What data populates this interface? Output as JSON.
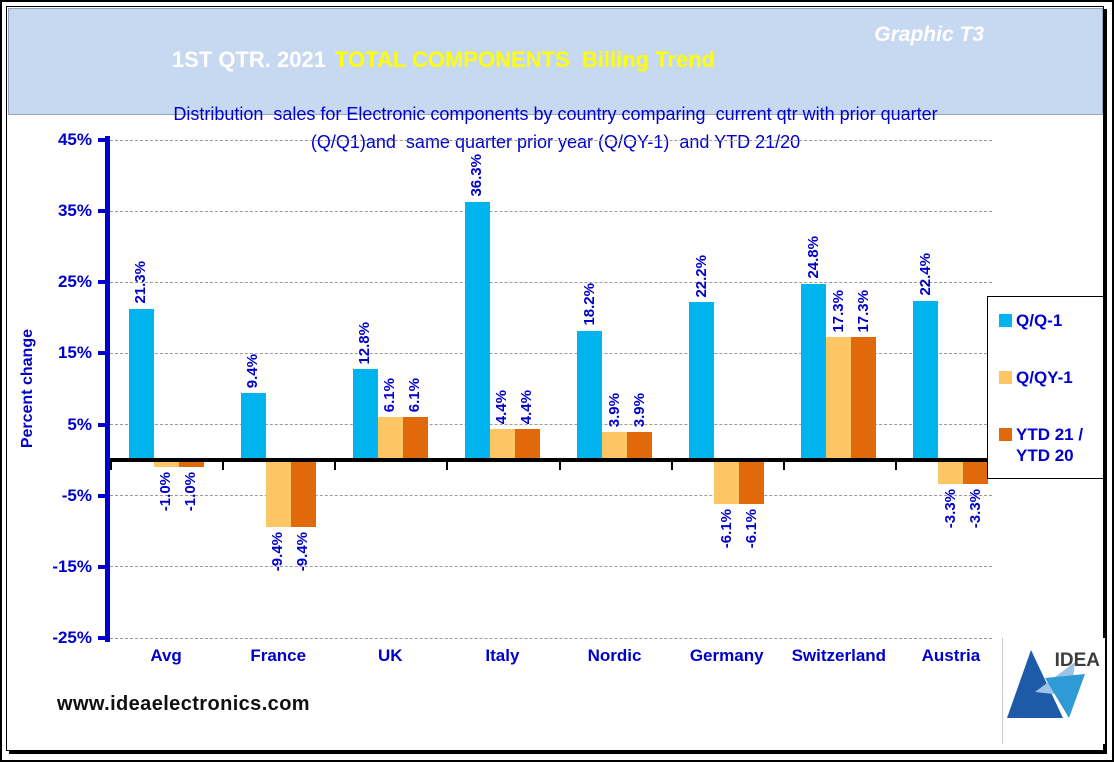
{
  "header": {
    "title_period": "1ST QTR. 2021",
    "title_highlight": "TOTAL COMPONENTS  Billing Trend",
    "title_graphic": "Graphic T3",
    "subtitle_line1": "Distribution  sales for Electronic components by country comparing  current qtr with prior quarter",
    "subtitle_line2": "(Q/Q1)and  same quarter prior year (Q/QY-1)  and YTD 21/20",
    "bg_color": "#C6D9F0"
  },
  "chart_data": {
    "type": "bar",
    "title": "1ST QTR. 2021 TOTAL COMPONENTS Billing Trend",
    "categories": [
      "Avg",
      "France",
      "UK",
      "Italy",
      "Nordic",
      "Germany",
      "Switzerland",
      "Austria"
    ],
    "series": [
      {
        "name": "Q/Q-1",
        "legend_label": "Q/Q-1",
        "color": "#00B4EF",
        "values": [
          21.3,
          9.4,
          12.8,
          36.3,
          18.2,
          22.2,
          24.8,
          22.4
        ]
      },
      {
        "name": "Q/QY-1",
        "legend_label": "Q/QY-1",
        "color": "#FCC665",
        "values": [
          -1.0,
          -9.4,
          6.1,
          4.4,
          3.9,
          -6.1,
          17.3,
          -3.3
        ]
      },
      {
        "name": "YTD 21 / YTD 20",
        "legend_label": "YTD 21 /\nYTD 20",
        "color": "#E2690B",
        "values": [
          -1.0,
          -9.4,
          6.1,
          4.4,
          3.9,
          -6.1,
          17.3,
          -3.3
        ]
      }
    ],
    "ylabel": "Percent change",
    "xlabel": "",
    "yticks": [
      45,
      35,
      25,
      15,
      5,
      -5,
      -15,
      -25
    ],
    "ylim": [
      -25,
      45
    ],
    "grid": true,
    "legend_position": "right",
    "value_label_suffix": "%",
    "axis_color": "#0000CD",
    "text_color": "#0000CD"
  },
  "footer": {
    "url": "www.ideaelectronics.com"
  },
  "logo": {
    "text": "IDEA"
  }
}
